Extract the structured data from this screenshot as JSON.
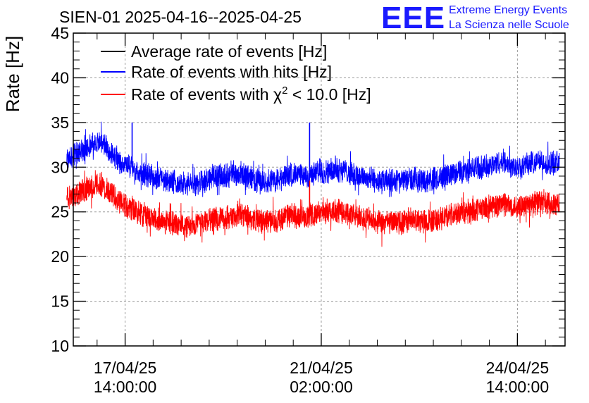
{
  "chart_data": {
    "type": "line",
    "title": "SIEN-01 2025-04-16--2025-04-25",
    "ylabel": "Rate [Hz]",
    "xlabel": "",
    "ylim": [
      10,
      45
    ],
    "yticks": [
      10,
      15,
      20,
      25,
      30,
      35,
      40,
      45
    ],
    "xlim_hours": [
      -8.2,
      202.4
    ],
    "xticks": [
      {
        "hours": 14,
        "line1": "17/04/25",
        "line2": "14:00:00"
      },
      {
        "hours": 98,
        "line1": "21/04/25",
        "line2": "02:00:00"
      },
      {
        "hours": 182,
        "line1": "24/04/25",
        "line2": "14:00:00"
      }
    ],
    "x_reference": "hours since 2025-04-17 00:00:00",
    "grid": true,
    "legend": {
      "position": "top-left",
      "entries": [
        {
          "label": "Average rate of events [Hz]",
          "color": "#000000"
        },
        {
          "label_prefix": "Rate of events with hits [Hz]",
          "color": "#0000ff"
        },
        {
          "label_prefix": "Rate of events with ",
          "symbol": "χ",
          "superscript": "2",
          "label_suffix": " < 10.0 [Hz]",
          "color": "#ff0000"
        }
      ]
    },
    "series": [
      {
        "name": "Rate of events with hits [Hz]",
        "color": "#0000ff",
        "x": [
          -11,
          -8,
          -4,
          0,
          4,
          8,
          12,
          16,
          20,
          24,
          28,
          32,
          36,
          40,
          44,
          48,
          52,
          56,
          60,
          64,
          68,
          72,
          76,
          80,
          84,
          88,
          92,
          96,
          100,
          104,
          108,
          112,
          116,
          120,
          124,
          128,
          132,
          136,
          140,
          144,
          148,
          152,
          156,
          160,
          164,
          168,
          172,
          176,
          180,
          184,
          188,
          192,
          196,
          200
        ],
        "values": [
          31.0,
          31.3,
          32.0,
          32.6,
          32.8,
          31.5,
          30.6,
          30.0,
          29.6,
          29.1,
          28.7,
          28.6,
          28.3,
          28.0,
          28.1,
          28.4,
          29.0,
          28.9,
          29.2,
          29.3,
          28.7,
          28.4,
          28.5,
          28.6,
          29.2,
          29.1,
          28.9,
          29.4,
          29.5,
          29.8,
          29.6,
          29.1,
          28.9,
          28.6,
          28.3,
          28.5,
          28.4,
          28.7,
          28.6,
          28.5,
          28.8,
          29.2,
          29.4,
          29.6,
          29.9,
          30.0,
          30.3,
          30.6,
          30.1,
          30.2,
          30.5,
          30.6,
          30.3,
          30.5
        ]
      },
      {
        "name": "Rate of events with chi2 < 10.0 [Hz]",
        "color": "#ff0000",
        "x": [
          -11,
          -8,
          -4,
          0,
          4,
          8,
          12,
          16,
          20,
          24,
          28,
          32,
          36,
          40,
          44,
          48,
          52,
          56,
          60,
          64,
          68,
          72,
          76,
          80,
          84,
          88,
          92,
          96,
          100,
          104,
          108,
          112,
          116,
          120,
          124,
          128,
          132,
          136,
          140,
          144,
          148,
          152,
          156,
          160,
          164,
          168,
          172,
          176,
          180,
          184,
          188,
          192,
          196,
          200
        ],
        "values": [
          26.6,
          26.8,
          27.3,
          27.9,
          28.1,
          27.0,
          26.1,
          25.4,
          24.9,
          24.5,
          24.1,
          23.9,
          23.6,
          23.4,
          23.5,
          23.8,
          24.3,
          24.2,
          24.5,
          24.6,
          24.2,
          24.0,
          24.0,
          24.1,
          24.6,
          24.5,
          24.3,
          24.8,
          25.0,
          25.2,
          25.1,
          24.5,
          24.3,
          24.0,
          23.6,
          23.9,
          23.7,
          24.1,
          24.0,
          23.9,
          24.2,
          24.6,
          24.7,
          24.9,
          25.2,
          25.4,
          25.7,
          26.0,
          25.6,
          25.7,
          25.9,
          26.1,
          25.9,
          26.0
        ]
      }
    ],
    "spikes": [
      {
        "series": "Rate of events with hits [Hz]",
        "x": 93,
        "y": 35.0
      },
      {
        "series": "Rate of events with hits [Hz]",
        "x": 17,
        "y": 35.0
      },
      {
        "series": "Rate of events with chi2 < 10.0 [Hz]",
        "x": 93,
        "y": 28.5
      }
    ]
  },
  "logo": {
    "mark": "EEE",
    "line1": "Extreme Energy Events",
    "line2": "La Scienza nelle Scuole"
  }
}
